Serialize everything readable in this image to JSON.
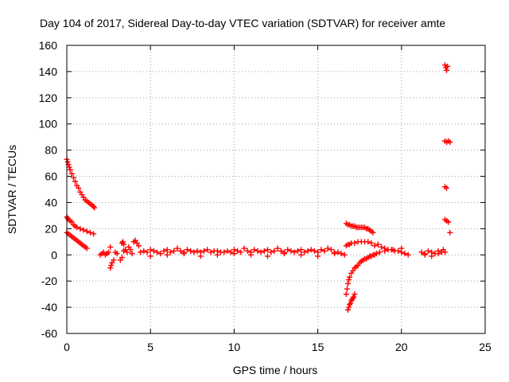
{
  "chart_data": {
    "type": "scatter",
    "title": "Day 104 of 2017, Sidereal Day-to-day VTEC variation (SDTVAR) for receiver amte",
    "xlabel": "GPS time / hours",
    "ylabel": "SDTVAR / TECUs",
    "xlim": [
      0,
      25
    ],
    "ylim": [
      -60,
      160
    ],
    "xticks": [
      0,
      5,
      10,
      15,
      20,
      25
    ],
    "yticks": [
      -60,
      -40,
      -20,
      0,
      20,
      40,
      60,
      80,
      100,
      120,
      140,
      160
    ],
    "grid": true,
    "marker": "+",
    "color": "#ff0000",
    "series": [
      {
        "name": "SDTVAR",
        "x": [
          0.0,
          0.05,
          0.1,
          0.15,
          0.2,
          0.3,
          0.4,
          0.5,
          0.6,
          0.7,
          0.8,
          0.9,
          1.0,
          1.1,
          1.2,
          1.3,
          1.4,
          1.5,
          1.6,
          1.65,
          0.0,
          0.05,
          0.1,
          0.2,
          0.3,
          0.4,
          0.5,
          0.6,
          0.8,
          1.0,
          1.2,
          1.4,
          1.6,
          0.0,
          0.1,
          0.2,
          0.3,
          0.4,
          0.5,
          0.6,
          0.7,
          0.8,
          0.9,
          1.0,
          1.1,
          1.2,
          2.0,
          2.1,
          2.2,
          2.3,
          2.4,
          2.5,
          2.6,
          2.65,
          2.6,
          2.7,
          2.8,
          2.9,
          3.0,
          3.2,
          3.3,
          3.4,
          3.3,
          3.35,
          3.4,
          3.5,
          3.6,
          3.7,
          3.8,
          3.9,
          4.0,
          4.1,
          4.2,
          4.3,
          4.4,
          4.6,
          4.8,
          5.0,
          5.2,
          5.4,
          5.6,
          5.8,
          6.0,
          6.2,
          6.4,
          6.6,
          6.8,
          7.0,
          7.2,
          7.4,
          7.6,
          7.8,
          8.0,
          8.2,
          8.4,
          8.6,
          8.8,
          9.0,
          9.2,
          9.4,
          9.6,
          9.8,
          10.0,
          10.2,
          10.4,
          10.6,
          10.8,
          11.0,
          11.2,
          11.4,
          11.6,
          11.8,
          12.0,
          12.2,
          12.4,
          12.6,
          12.8,
          13.0,
          13.2,
          13.4,
          13.6,
          13.8,
          14.0,
          14.2,
          14.4,
          14.6,
          14.8,
          15.0,
          15.2,
          15.4,
          15.6,
          15.8,
          16.0,
          16.2,
          16.4,
          16.6,
          5.0,
          6.0,
          7.0,
          8.0,
          9.0,
          10.0,
          11.0,
          12.0,
          13.0,
          14.0,
          15.0,
          16.0,
          16.7,
          16.8,
          16.9,
          17.0,
          17.1,
          17.2,
          17.3,
          17.4,
          17.5,
          17.6,
          17.7,
          17.8,
          17.9,
          18.0,
          18.1,
          18.2,
          18.3,
          16.7,
          16.8,
          16.9,
          17.0,
          17.2,
          17.4,
          17.6,
          17.8,
          18.0,
          18.2,
          18.4,
          16.7,
          16.75,
          16.8,
          16.85,
          16.9,
          17.0,
          17.1,
          17.2,
          17.3,
          17.4,
          17.5,
          17.6,
          17.7,
          17.8,
          17.9,
          18.0,
          18.1,
          18.2,
          18.3,
          18.4,
          18.5,
          16.8,
          16.85,
          16.9,
          16.95,
          17.0,
          17.05,
          17.1,
          17.15,
          17.2,
          18.6,
          18.8,
          19.0,
          19.2,
          19.4,
          19.6,
          19.8,
          20.0,
          20.2,
          20.4,
          18.7,
          19.0,
          19.5,
          20.0,
          21.2,
          21.4,
          21.6,
          21.8,
          22.0,
          22.2,
          22.4,
          22.5,
          22.6,
          21.4,
          21.8,
          22.2,
          22.6,
          22.65,
          22.7,
          22.75,
          22.6,
          22.7,
          22.8,
          22.9,
          22.6,
          22.7,
          22.6,
          22.7,
          22.8,
          22.9
        ],
        "y": [
          73,
          71,
          69,
          67,
          65,
          62,
          59,
          56,
          53,
          51,
          48,
          46,
          44,
          42,
          41,
          40,
          39,
          38,
          37,
          36,
          29,
          28,
          27,
          26,
          25,
          23,
          22,
          21,
          20,
          19,
          18,
          17,
          16,
          17,
          16,
          15,
          14,
          13,
          12,
          11,
          10,
          9,
          8,
          7,
          6,
          5,
          0,
          1,
          2,
          0,
          1,
          2,
          6,
          -8,
          -10,
          -6,
          -4,
          2,
          1,
          -4,
          -2,
          3,
          9,
          10,
          8,
          4,
          2,
          6,
          4,
          1,
          10,
          11,
          9,
          7,
          2,
          3,
          2,
          4,
          3,
          2,
          1,
          3,
          4,
          2,
          3,
          5,
          3,
          2,
          4,
          3,
          2,
          3,
          2,
          3,
          4,
          2,
          3,
          3,
          2,
          2,
          3,
          2,
          4,
          3,
          2,
          5,
          3,
          2,
          4,
          3,
          2,
          3,
          4,
          2,
          3,
          5,
          3,
          2,
          4,
          3,
          2,
          3,
          4,
          2,
          3,
          4,
          3,
          2,
          4,
          3,
          5,
          4,
          2,
          2,
          1,
          0,
          -1,
          0,
          1,
          -1,
          0,
          1,
          0,
          -1,
          1,
          0,
          -1,
          1,
          24,
          23,
          23,
          22,
          22,
          22,
          21,
          21,
          21,
          21,
          21,
          21,
          20,
          20,
          19,
          18,
          17,
          7,
          8,
          8,
          9,
          9,
          10,
          10,
          10,
          10,
          9,
          7,
          -30,
          -26,
          -22,
          -19,
          -17,
          -14,
          -12,
          -10,
          -9,
          -8,
          -6,
          -5,
          -4,
          -3,
          -3,
          -2,
          -1,
          -1,
          0,
          0,
          1,
          -42,
          -40,
          -38,
          -37,
          -35,
          -34,
          -33,
          -32,
          -30,
          8,
          6,
          5,
          4,
          4,
          3,
          3,
          2,
          1,
          0,
          2,
          3,
          4,
          5,
          2,
          1,
          3,
          2,
          1,
          3,
          2,
          4,
          2,
          0,
          -1,
          1,
          145,
          143,
          141,
          144,
          87,
          86,
          87,
          86,
          52,
          51,
          27,
          26,
          25,
          17
        ]
      }
    ]
  }
}
